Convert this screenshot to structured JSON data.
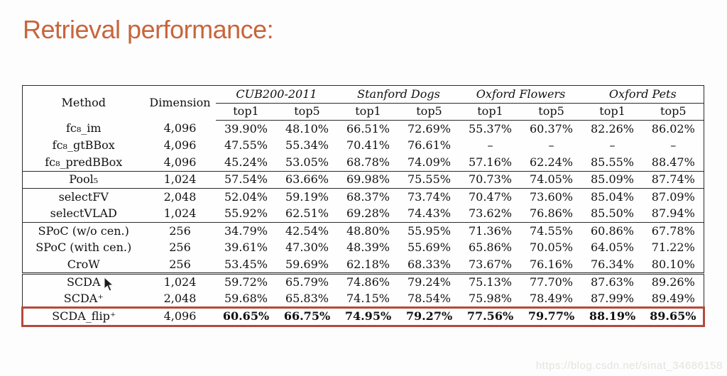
{
  "slide": {
    "title": "Retrieval performance:"
  },
  "colors": {
    "title": "#c8653c",
    "table_line": "#2b2b2b",
    "highlight_box": "#b5493b"
  },
  "watermark": {
    "text": "https://blog.csdn.net/sinat_34686158"
  },
  "chart_data": {
    "type": "table",
    "title": "Retrieval performance",
    "columns": [
      "Method",
      "Dimension",
      "CUB200-2011 top1",
      "CUB200-2011 top5",
      "Stanford Dogs top1",
      "Stanford Dogs top5",
      "Oxford Flowers top1",
      "Oxford Flowers top5",
      "Oxford Pets top1",
      "Oxford Pets top5"
    ]
  },
  "table": {
    "col_method": "Method",
    "col_dimension": "Dimension",
    "groups": [
      "CUB200-2011",
      "Stanford Dogs",
      "Oxford Flowers",
      "Oxford Pets"
    ],
    "subcols": [
      "top1",
      "top5"
    ],
    "rows": [
      {
        "method": "fc₈_im",
        "dimension": "4,096",
        "values": [
          "39.90%",
          "48.10%",
          "66.51%",
          "72.69%",
          "55.37%",
          "60.37%",
          "82.26%",
          "86.02%"
        ],
        "sep": "none",
        "highlight": false
      },
      {
        "method": "fc₈_gtBBox",
        "dimension": "4,096",
        "values": [
          "47.55%",
          "55.34%",
          "70.41%",
          "76.61%",
          "–",
          "–",
          "–",
          "–"
        ],
        "sep": "none",
        "highlight": false
      },
      {
        "method": "fc₈_predBBox",
        "dimension": "4,096",
        "values": [
          "45.24%",
          "53.05%",
          "68.78%",
          "74.09%",
          "57.16%",
          "62.24%",
          "85.55%",
          "88.47%"
        ],
        "sep": "none",
        "highlight": false
      },
      {
        "method": "Pool₅",
        "dimension": "1,024",
        "values": [
          "57.54%",
          "63.66%",
          "69.98%",
          "75.55%",
          "70.73%",
          "74.05%",
          "85.09%",
          "87.74%"
        ],
        "sep": "single",
        "highlight": false
      },
      {
        "method": "selectFV",
        "dimension": "2,048",
        "values": [
          "52.04%",
          "59.19%",
          "68.37%",
          "73.74%",
          "70.47%",
          "73.60%",
          "85.04%",
          "87.09%"
        ],
        "sep": "single",
        "highlight": false
      },
      {
        "method": "selectVLAD",
        "dimension": "1,024",
        "values": [
          "55.92%",
          "62.51%",
          "69.28%",
          "74.43%",
          "73.62%",
          "76.86%",
          "85.50%",
          "87.94%"
        ],
        "sep": "none",
        "highlight": false
      },
      {
        "method": "SPoC (w/o cen.)",
        "dimension": "256",
        "values": [
          "34.79%",
          "42.54%",
          "48.80%",
          "55.95%",
          "71.36%",
          "74.55%",
          "60.86%",
          "67.78%"
        ],
        "sep": "single",
        "highlight": false
      },
      {
        "method": "SPoC (with cen.)",
        "dimension": "256",
        "values": [
          "39.61%",
          "47.30%",
          "48.39%",
          "55.69%",
          "65.86%",
          "70.05%",
          "64.05%",
          "71.22%"
        ],
        "sep": "none",
        "highlight": false
      },
      {
        "method": "CroW",
        "dimension": "256",
        "values": [
          "53.45%",
          "59.69%",
          "62.18%",
          "68.33%",
          "73.67%",
          "76.16%",
          "76.34%",
          "80.10%"
        ],
        "sep": "none",
        "highlight": false
      },
      {
        "method": "SCDA",
        "dimension": "1,024",
        "values": [
          "59.72%",
          "65.79%",
          "74.86%",
          "79.24%",
          "75.13%",
          "77.70%",
          "87.63%",
          "89.26%"
        ],
        "sep": "double",
        "highlight": false
      },
      {
        "method": "SCDA⁺",
        "dimension": "2,048",
        "values": [
          "59.68%",
          "65.83%",
          "74.15%",
          "78.54%",
          "75.98%",
          "78.49%",
          "87.99%",
          "89.49%"
        ],
        "sep": "none",
        "highlight": false
      },
      {
        "method": "SCDA_flip⁺",
        "dimension": "4,096",
        "values": [
          "60.65%",
          "66.75%",
          "74.95%",
          "79.27%",
          "77.56%",
          "79.77%",
          "88.19%",
          "89.65%"
        ],
        "sep": "none",
        "highlight": true
      }
    ]
  }
}
